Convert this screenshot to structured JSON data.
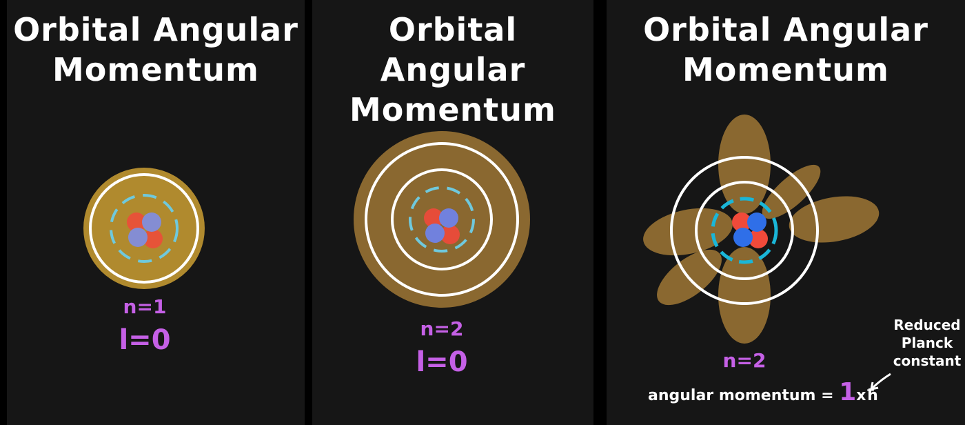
{
  "panels": [
    {
      "title_line1": "Orbital Angular",
      "title_line2": "Momentum",
      "n_label": "n=1",
      "l_label": "l=0",
      "cloud_color": "#b08a2e"
    },
    {
      "title_line1": "Orbital Angular",
      "title_line2": "Momentum",
      "n_label": "n=2",
      "l_label": "l=0",
      "cloud_color": "#8a6830"
    },
    {
      "title_line1": "Orbital Angular",
      "title_line2": "Momentum",
      "n_label": "n=2",
      "angular_label": "angular momentum =",
      "angular_value": "1",
      "angular_unit": "xħ",
      "note_line1": "Reduced",
      "note_line2": "Planck",
      "note_line3": "constant",
      "cloud_color": "#8a6830"
    }
  ],
  "colors": {
    "label_purple": "#c560e6",
    "proton_red": "#f04a3a",
    "neutron_blue": "#5a7ef0",
    "electron_shell": "#6fc9dd",
    "ring_white": "#ffffff"
  }
}
